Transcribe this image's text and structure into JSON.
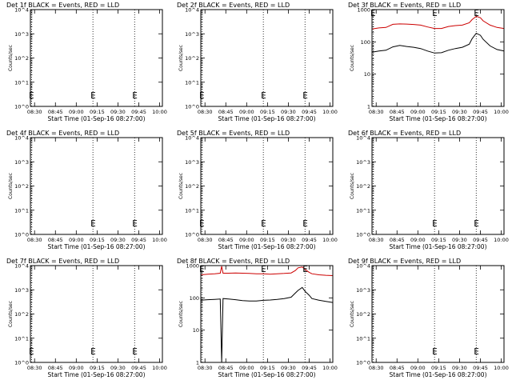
{
  "xlabel": "Start Time (01-Sep-16 08:27:00)",
  "ylabel": "Counts/sec",
  "x_tick_labels": [
    "08:30",
    "08:45",
    "09:00",
    "09:15",
    "09:30",
    "09:45",
    "10:00"
  ],
  "e_marker": "E",
  "colors": {
    "events": "#000000",
    "lld": "#cc0000",
    "axis": "#000000"
  },
  "chart_data": [
    {
      "type": "line",
      "detector": "1f",
      "title": "Det 1f BLACK = Events, RED = LLD",
      "x_range_min": [
        0,
        95
      ],
      "ylim": [
        1,
        10000
      ],
      "y_scale": "log",
      "y_tick_labels": [
        "10^0",
        "10^1",
        "10^2",
        "10^3",
        "10^4"
      ],
      "dotted_lines_min": [
        -3,
        45,
        75
      ],
      "e_markers_min": [
        -3,
        45,
        75
      ],
      "series": []
    },
    {
      "type": "line",
      "detector": "2f",
      "title": "Det 2f BLACK = Events, RED = LLD",
      "x_range_min": [
        0,
        95
      ],
      "ylim": [
        1,
        10000
      ],
      "y_scale": "log",
      "y_tick_labels": [
        "10^0",
        "10^1",
        "10^2",
        "10^3",
        "10^4"
      ],
      "dotted_lines_min": [
        -3,
        45,
        75
      ],
      "e_markers_min": [
        -3,
        45,
        75
      ],
      "series": []
    },
    {
      "type": "line",
      "detector": "3f",
      "title": "Det 3f BLACK = Events, RED = LLD",
      "x_range_min": [
        0,
        95
      ],
      "ylim": [
        1,
        1000
      ],
      "y_scale": "log",
      "y_tick_labels": [
        "1",
        "10",
        "100",
        "1000"
      ],
      "dotted_lines_min": [
        -3,
        45,
        75
      ],
      "e_markers_min": [
        -3,
        45,
        75
      ],
      "series": [
        {
          "color": "#cc0000",
          "x": [
            0,
            5,
            10,
            15,
            20,
            25,
            30,
            35,
            40,
            45,
            50,
            55,
            60,
            65,
            70,
            72,
            75,
            78,
            80,
            85,
            90,
            95
          ],
          "y": [
            250,
            270,
            280,
            350,
            360,
            355,
            345,
            330,
            290,
            260,
            260,
            300,
            320,
            330,
            390,
            490,
            620,
            560,
            450,
            330,
            280,
            260
          ]
        },
        {
          "color": "#000000",
          "x": [
            0,
            5,
            10,
            15,
            20,
            25,
            30,
            35,
            40,
            45,
            50,
            55,
            60,
            65,
            70,
            72,
            75,
            78,
            80,
            85,
            90,
            95
          ],
          "y": [
            48,
            52,
            55,
            70,
            78,
            72,
            68,
            62,
            52,
            45,
            46,
            55,
            62,
            68,
            85,
            125,
            185,
            160,
            120,
            75,
            58,
            52
          ]
        }
      ]
    },
    {
      "type": "line",
      "detector": "4f",
      "title": "Det 4f BLACK = Events, RED = LLD",
      "x_range_min": [
        0,
        95
      ],
      "ylim": [
        1,
        10000
      ],
      "y_scale": "log",
      "y_tick_labels": [
        "10^0",
        "10^1",
        "10^2",
        "10^3",
        "10^4"
      ],
      "dotted_lines_min": [
        -3,
        45,
        75
      ],
      "e_markers_min": [
        45,
        75
      ],
      "series": []
    },
    {
      "type": "line",
      "detector": "5f",
      "title": "Det 5f BLACK = Events, RED = LLD",
      "x_range_min": [
        0,
        95
      ],
      "ylim": [
        1,
        10000
      ],
      "y_scale": "log",
      "y_tick_labels": [
        "10^0",
        "10^1",
        "10^2",
        "10^3",
        "10^4"
      ],
      "dotted_lines_min": [
        -3,
        45,
        75
      ],
      "e_markers_min": [
        -3,
        45,
        75
      ],
      "series": []
    },
    {
      "type": "line",
      "detector": "6f",
      "title": "Det 6f BLACK = Events, RED = LLD",
      "x_range_min": [
        0,
        95
      ],
      "ylim": [
        1,
        10000
      ],
      "y_scale": "log",
      "y_tick_labels": [
        "10^0",
        "10^1",
        "10^2",
        "10^3",
        "10^4"
      ],
      "dotted_lines_min": [
        -3,
        45,
        75
      ],
      "e_markers_min": [
        45,
        75
      ],
      "series": []
    },
    {
      "type": "line",
      "detector": "7f",
      "title": "Det 7f BLACK = Events, RED = LLD",
      "x_range_min": [
        0,
        95
      ],
      "ylim": [
        1,
        10000
      ],
      "y_scale": "log",
      "y_tick_labels": [
        "10^0",
        "10^1",
        "10^2",
        "10^3",
        "10^4"
      ],
      "dotted_lines_min": [
        -3,
        45,
        75
      ],
      "e_markers_min": [
        -3,
        45,
        75
      ],
      "series": []
    },
    {
      "type": "line",
      "detector": "8f",
      "title": "Det 8f BLACK = Events, RED = LLD",
      "x_range_min": [
        0,
        95
      ],
      "ylim": [
        1,
        1000
      ],
      "y_scale": "log",
      "y_tick_labels": [
        "1",
        "10",
        "100",
        "1000"
      ],
      "dotted_lines_min": [
        -3,
        45,
        75
      ],
      "e_markers_min": [
        -3,
        45,
        75
      ],
      "series": [
        {
          "color": "#cc0000",
          "x": [
            0,
            5,
            10,
            14,
            15,
            16,
            20,
            25,
            30,
            35,
            40,
            45,
            50,
            55,
            60,
            65,
            68,
            70,
            73,
            75,
            78,
            80,
            85,
            90,
            95
          ],
          "y": [
            520,
            540,
            560,
            580,
            950,
            580,
            580,
            590,
            580,
            575,
            560,
            560,
            540,
            560,
            570,
            590,
            700,
            850,
            900,
            760,
            620,
            560,
            520,
            500,
            490
          ]
        },
        {
          "color": "#000000",
          "x": [
            0,
            5,
            10,
            14,
            15,
            16,
            20,
            25,
            30,
            35,
            40,
            45,
            50,
            55,
            60,
            65,
            68,
            70,
            73,
            75,
            78,
            80,
            85,
            90,
            95
          ],
          "y": [
            85,
            88,
            90,
            92,
            1,
            95,
            92,
            88,
            82,
            80,
            80,
            84,
            86,
            90,
            95,
            105,
            140,
            170,
            210,
            160,
            120,
            95,
            85,
            78,
            72
          ]
        }
      ]
    },
    {
      "type": "line",
      "detector": "9f",
      "title": "Det 9f BLACK = Events, RED = LLD",
      "x_range_min": [
        0,
        95
      ],
      "ylim": [
        1,
        10000
      ],
      "y_scale": "log",
      "y_tick_labels": [
        "10^0",
        "10^1",
        "10^2",
        "10^3",
        "10^4"
      ],
      "dotted_lines_min": [
        -3,
        45,
        75
      ],
      "e_markers_min": [
        45,
        75
      ],
      "series": []
    }
  ]
}
